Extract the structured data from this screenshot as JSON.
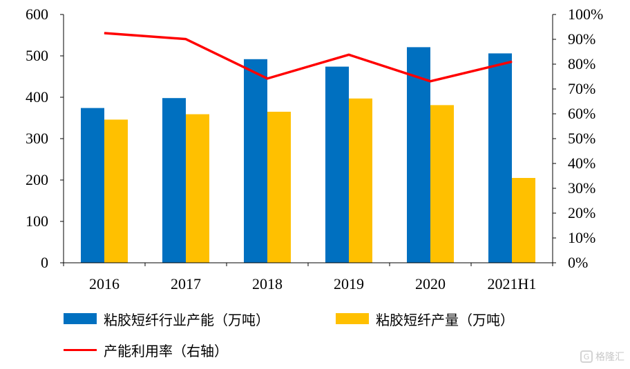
{
  "chart_data": {
    "type": "bar",
    "title": "",
    "xlabel": "",
    "ylabel": "",
    "categories": [
      "2016",
      "2017",
      "2018",
      "2019",
      "2020",
      "2021H1"
    ],
    "series": [
      {
        "name": "粘胶短纤行业产能（万吨）",
        "type": "bar",
        "axis": "left",
        "color": "#0070C0",
        "values": [
          374,
          398,
          492,
          474,
          521,
          506
        ]
      },
      {
        "name": "粘胶短纤产量（万吨）",
        "type": "bar",
        "axis": "left",
        "color": "#FFC000",
        "values": [
          346,
          359,
          365,
          397,
          381,
          205
        ]
      },
      {
        "name": "产能利用率（右轴）",
        "type": "line",
        "axis": "right",
        "color": "#FF0000",
        "values": [
          0.925,
          0.901,
          0.742,
          0.838,
          0.731,
          0.81
        ]
      }
    ],
    "y_left": {
      "min": 0,
      "max": 600,
      "ticks": [
        "0",
        "100",
        "200",
        "300",
        "400",
        "500",
        "600"
      ]
    },
    "y_right": {
      "min": 0,
      "max": 1,
      "ticks": [
        "0%",
        "10%",
        "20%",
        "30%",
        "40%",
        "50%",
        "60%",
        "70%",
        "80%",
        "90%",
        "100%"
      ]
    },
    "grid": false,
    "legend_position": "bottom"
  },
  "legend": {
    "capacity": "粘胶短纤行业产能（万吨）",
    "output": "粘胶短纤产量（万吨）",
    "utilization": "产能利用率（右轴）"
  },
  "watermark": {
    "text": "格隆汇",
    "icon": "gelonghui-logo-icon"
  }
}
